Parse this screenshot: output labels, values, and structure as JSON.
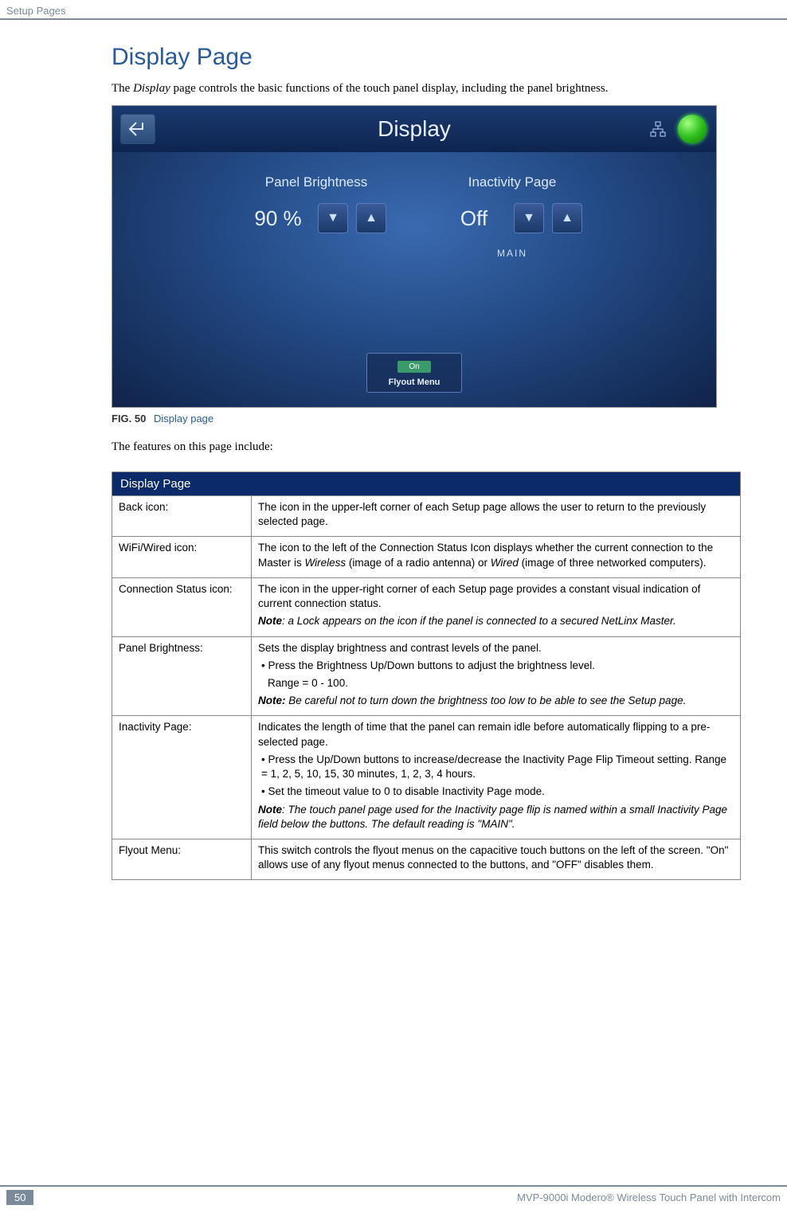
{
  "header": {
    "section": "Setup Pages"
  },
  "title": "Display Page",
  "intro_prefix": "The ",
  "intro_ital": "Display",
  "intro_suffix": " page controls the basic functions of the touch panel display, including the panel brightness.",
  "screenshot": {
    "title": "Display",
    "panel_brightness_label": "Panel Brightness",
    "panel_brightness_value": "90 %",
    "inactivity_label": "Inactivity Page",
    "inactivity_value": "Off",
    "main_label": "MAIN",
    "flyout_toggle": "On",
    "flyout_label": "Flyout Menu",
    "title_bg_colors": [
      "#1a3a70",
      "#0e2450"
    ],
    "body_bg_colors": [
      "#3a6ab0",
      "#234a85",
      "#10234a"
    ],
    "status_color_on": "#30c020"
  },
  "figure": {
    "num": "FIG. 50",
    "caption": "Display page"
  },
  "features_line": "The features on this page include:",
  "table": {
    "header": "Display Page",
    "rows": [
      {
        "k": "Back icon:",
        "v": [
          {
            "type": "text",
            "t": "The icon in the upper-left corner of each Setup page allows the user to return to the previously selected page."
          }
        ]
      },
      {
        "k": "WiFi/Wired icon:",
        "v": [
          {
            "type": "richtext",
            "parts": [
              {
                "t": "The icon to the left of the Connection Status Icon displays whether the current connection to the Master is "
              },
              {
                "t": "Wireless",
                "ital": true
              },
              {
                "t": " (image of a radio antenna) or "
              },
              {
                "t": "Wired",
                "ital": true
              },
              {
                "t": " (image of three networked computers)."
              }
            ]
          }
        ]
      },
      {
        "k": "Connection Status icon:",
        "v": [
          {
            "type": "text",
            "t": "The icon in the upper-right corner of each Setup page provides a constant visual indication of current connection status."
          },
          {
            "type": "richtext",
            "parts": [
              {
                "t": "Note",
                "bi": true
              },
              {
                "t": ": a Lock appears on the icon if the panel is connected to a secured NetLinx Master.",
                "ital": true
              }
            ]
          }
        ]
      },
      {
        "k": "Panel Brightness:",
        "v": [
          {
            "type": "text",
            "t": "Sets the display brightness and contrast levels of the panel."
          },
          {
            "type": "bullet",
            "t": "Press the Brightness Up/Down buttons to adjust the brightness level."
          },
          {
            "type": "indent",
            "t": "Range = 0 - 100."
          },
          {
            "type": "richtext",
            "parts": [
              {
                "t": "Note:",
                "bi": true
              },
              {
                "t": " Be careful not to turn down the brightness too low to be able to see the Setup page.",
                "ital": true
              }
            ]
          }
        ]
      },
      {
        "k": "Inactivity Page:",
        "v": [
          {
            "type": "text",
            "t": "Indicates the length of time that the panel can remain idle before automatically flipping to a pre-selected page."
          },
          {
            "type": "bullet",
            "t": "Press the Up/Down buttons to increase/decrease the Inactivity Page Flip Timeout setting. Range = 1, 2, 5, 10, 15, 30 minutes, 1, 2, 3, 4 hours."
          },
          {
            "type": "bullet",
            "t": "Set the timeout value to 0 to disable Inactivity Page mode."
          },
          {
            "type": "richtext",
            "parts": [
              {
                "t": "Note",
                "bi": true
              },
              {
                "t": ": The touch panel page used for the Inactivity page flip is named within a small Inactivity Page field below the buttons. The default reading is \"MAIN\".",
                "ital": true
              }
            ]
          }
        ]
      },
      {
        "k": "Flyout Menu:",
        "v": [
          {
            "type": "text",
            "t": "This switch controls the flyout menus on the capacitive touch buttons on the left of the screen. \"On\" allows use of any flyout menus connected to the buttons, and \"OFF\" disables them."
          }
        ]
      }
    ]
  },
  "footer": {
    "page_num": "50",
    "product": "MVP-9000i Modero® Wireless Touch Panel with Intercom"
  },
  "colors": {
    "heading": "#2a5a9a",
    "table_header_bg": "#0a2a6a",
    "rule": "#7a8a9a"
  }
}
